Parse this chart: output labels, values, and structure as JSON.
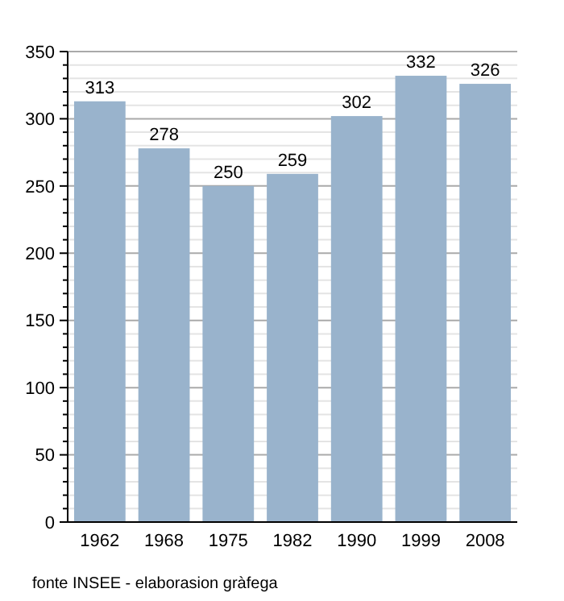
{
  "chart_data": {
    "type": "bar",
    "categories": [
      "1962",
      "1968",
      "1975",
      "1982",
      "1990",
      "1999",
      "2008"
    ],
    "values": [
      313,
      278,
      250,
      259,
      302,
      332,
      326
    ],
    "color": "#99b3cc",
    "data_labels": true,
    "ylim": [
      0,
      350
    ],
    "yticks": [
      0,
      {
        "value": 10,
        "label": null
      },
      {
        "value": 20,
        "label": null
      },
      {
        "value": 30,
        "label": null
      },
      {
        "value": 40,
        "label": null
      },
      50,
      {
        "value": 60,
        "label": null
      },
      {
        "value": 70,
        "label": null
      },
      {
        "value": 80,
        "label": null
      },
      {
        "value": 90,
        "label": null
      },
      100,
      {
        "value": 110,
        "label": null
      },
      {
        "value": 120,
        "label": null
      },
      {
        "value": 130,
        "label": null
      },
      {
        "value": 140,
        "label": null
      },
      150,
      {
        "value": 160,
        "label": null
      },
      {
        "value": 170,
        "label": null
      },
      {
        "value": 180,
        "label": null
      },
      {
        "value": 190,
        "label": null
      },
      200,
      {
        "value": 210,
        "label": null
      },
      {
        "value": 220,
        "label": null
      },
      {
        "value": 230,
        "label": null
      },
      {
        "value": 240,
        "label": null
      },
      250,
      {
        "value": 260,
        "label": null
      },
      {
        "value": 270,
        "label": null
      },
      {
        "value": 280,
        "label": null
      },
      {
        "value": 290,
        "label": null
      },
      300,
      {
        "value": 310,
        "label": null
      },
      {
        "value": 320,
        "label": null
      },
      {
        "value": 330,
        "label": null
      },
      {
        "value": 340,
        "label": null
      },
      350
    ],
    "grid": true,
    "annotations": [
      "fonte INSEE - elaborasion gràfega"
    ]
  }
}
